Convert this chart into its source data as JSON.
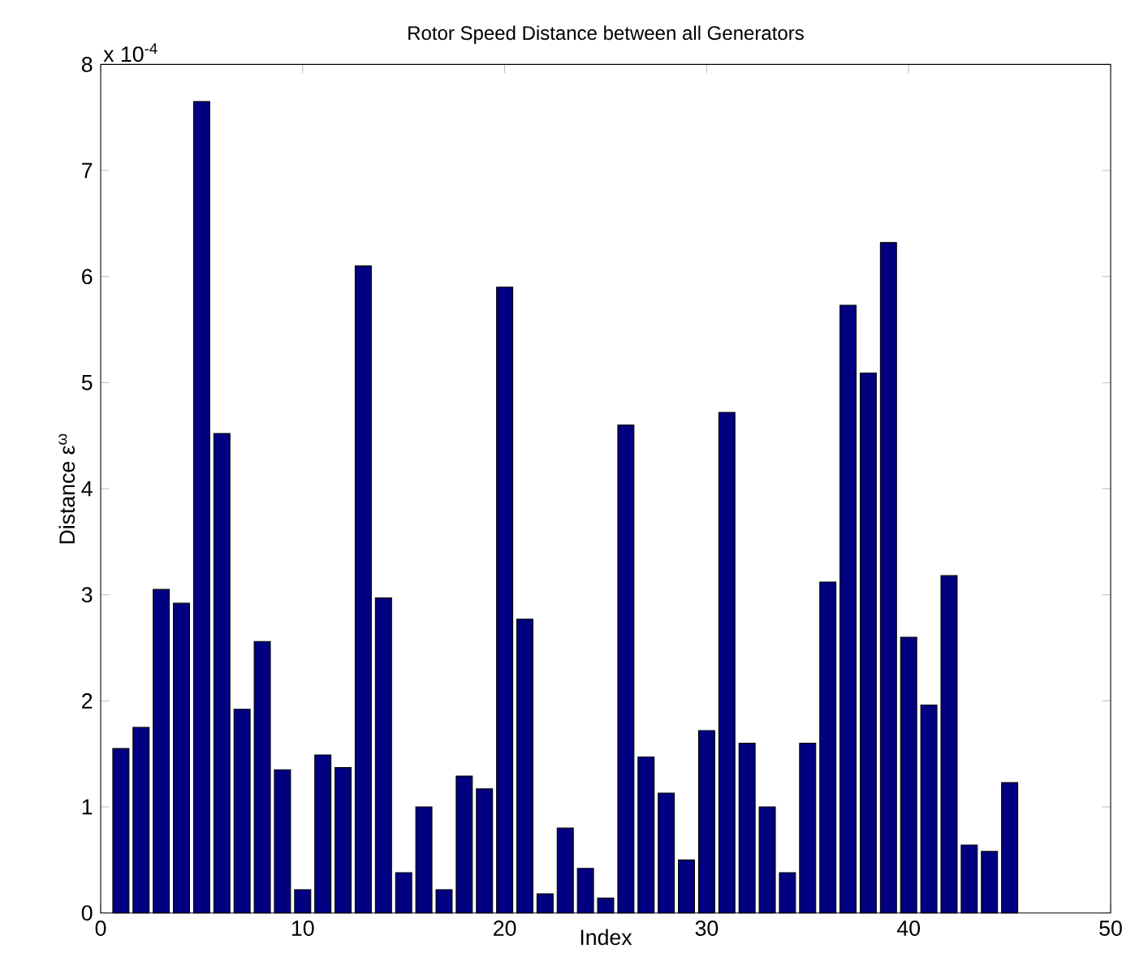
{
  "chart_data": {
    "type": "bar",
    "title": "Rotor Speed Distance between all Generators",
    "xlabel": "Index",
    "ylabel": "Distance ε$^{ω}$",
    "annotations": [
      "x 10$^{-4}$"
    ],
    "x": [
      1,
      2,
      3,
      4,
      5,
      6,
      7,
      8,
      9,
      10,
      11,
      12,
      13,
      14,
      15,
      16,
      17,
      18,
      19,
      20,
      21,
      22,
      23,
      24,
      25,
      26,
      27,
      28,
      29,
      30,
      31,
      32,
      33,
      34,
      35,
      36,
      37,
      38,
      39,
      40,
      41,
      42,
      43,
      44,
      45
    ],
    "values": [
      1.55,
      1.75,
      3.05,
      2.92,
      7.65,
      4.52,
      1.92,
      2.56,
      1.35,
      0.22,
      1.49,
      1.37,
      6.1,
      2.97,
      0.38,
      1.0,
      0.22,
      1.29,
      1.17,
      5.9,
      2.77,
      0.18,
      0.8,
      0.42,
      0.14,
      4.6,
      1.47,
      1.13,
      0.5,
      1.72,
      4.72,
      1.6,
      1.0,
      0.38,
      1.6,
      3.12,
      5.73,
      5.09,
      6.32,
      2.6,
      1.96,
      3.18,
      0.64,
      0.58,
      1.23
    ],
    "color": "#000080",
    "xlim": [
      0,
      50
    ],
    "xticks": [
      0,
      10,
      20,
      30,
      40,
      50
    ],
    "ylim": [
      0,
      8
    ],
    "yticks": [
      0,
      1,
      2,
      3,
      4,
      5,
      6,
      7,
      8
    ]
  }
}
